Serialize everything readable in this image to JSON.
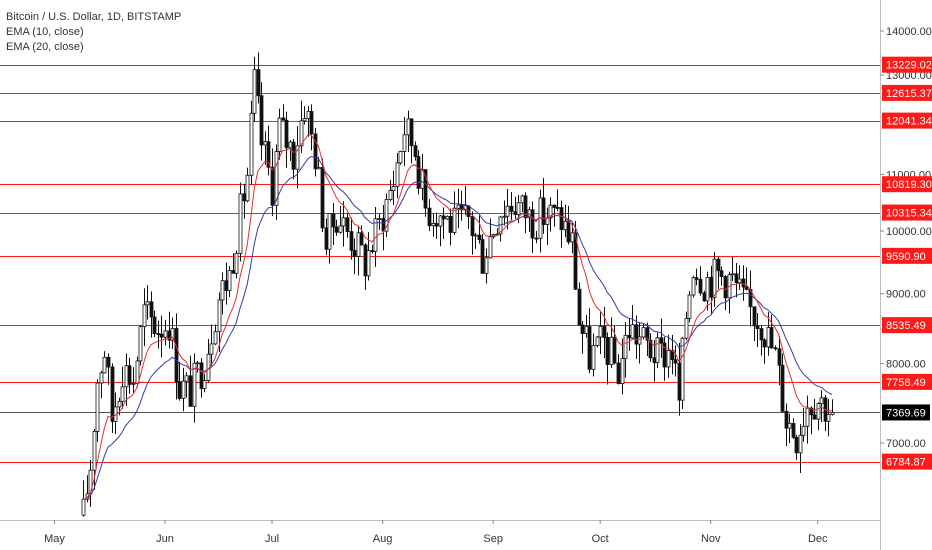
{
  "legend": {
    "title": "Bitcoin / U.S. Dollar, 1D, BITSTAMP",
    "ema10": "EMA (10, close)",
    "ema20": "EMA (20, close)"
  },
  "colors": {
    "up": "#111111",
    "down": "#111111",
    "ema10": "#e03030",
    "ema20": "#3a3aa0",
    "level": "#ff1a1a",
    "current": "#000000",
    "axis": "#333333"
  },
  "chart_data": {
    "type": "candlestick",
    "title": "Bitcoin / U.S. Dollar, 1D, BITSTAMP",
    "y_scale": "log",
    "ylim": [
      6150,
      14700
    ],
    "y_ticks": [
      {
        "value": 14000,
        "label": "14000.00"
      },
      {
        "value": 13000,
        "label": "13000.00"
      },
      {
        "value": 11000,
        "label": "11000.00"
      },
      {
        "value": 10000,
        "label": "10000.00"
      },
      {
        "value": 9000,
        "label": "9000.00"
      },
      {
        "value": 8000,
        "label": "8000.00"
      },
      {
        "value": 7000,
        "label": "7000.00"
      }
    ],
    "x_ticks": [
      {
        "date": "2019-05-01",
        "label": "May"
      },
      {
        "date": "2019-06-01",
        "label": "Jun"
      },
      {
        "date": "2019-07-01",
        "label": "Jul"
      },
      {
        "date": "2019-08-01",
        "label": "Aug"
      },
      {
        "date": "2019-09-01",
        "label": "Sep"
      },
      {
        "date": "2019-10-01",
        "label": "Oct"
      },
      {
        "date": "2019-11-01",
        "label": "Nov"
      },
      {
        "date": "2019-12-01",
        "label": "Dec"
      }
    ],
    "x_start": "2019-05-09",
    "x_end": "2019-12-05",
    "horizontal_levels": [
      {
        "value": 13229.02,
        "label": "13229.02"
      },
      {
        "value": 12615.37,
        "label": "12615.37"
      },
      {
        "value": 12041.34,
        "label": "12041.34"
      },
      {
        "value": 10819.3,
        "label": "10819.30"
      },
      {
        "value": 10315.34,
        "label": "10315.34"
      },
      {
        "value": 9590.9,
        "label": "9590.90"
      },
      {
        "value": 8535.49,
        "label": "8535.49"
      },
      {
        "value": 7758.49,
        "label": "7758.49"
      },
      {
        "value": 6784.87,
        "label": "6784.87"
      }
    ],
    "current_price": {
      "value": 7369.69,
      "label": "7369.69"
    },
    "close_path": [
      [
        "2019-05-09",
        6200
      ],
      [
        "2019-05-11",
        6750
      ],
      [
        "2019-05-13",
        7800
      ],
      [
        "2019-05-15",
        8200
      ],
      [
        "2019-05-17",
        7300
      ],
      [
        "2019-05-20",
        7950
      ],
      [
        "2019-05-23",
        7800
      ],
      [
        "2019-05-26",
        8700
      ],
      [
        "2019-05-30",
        8500
      ],
      [
        "2019-06-02",
        8600
      ],
      [
        "2019-06-05",
        7700
      ],
      [
        "2019-06-08",
        7650
      ],
      [
        "2019-06-12",
        8050
      ],
      [
        "2019-06-16",
        8950
      ],
      [
        "2019-06-19",
        9300
      ],
      [
        "2019-06-22",
        10300
      ],
      [
        "2019-06-24",
        11000
      ],
      [
        "2019-06-26",
        12800
      ],
      [
        "2019-06-28",
        11600
      ],
      [
        "2019-07-01",
        10800
      ],
      [
        "2019-07-03",
        11900
      ],
      [
        "2019-07-07",
        11400
      ],
      [
        "2019-07-10",
        12400
      ],
      [
        "2019-07-13",
        11400
      ],
      [
        "2019-07-16",
        9800
      ],
      [
        "2019-07-19",
        10300
      ],
      [
        "2019-07-23",
        9900
      ],
      [
        "2019-07-27",
        9500
      ],
      [
        "2019-07-31",
        10100
      ],
      [
        "2019-08-04",
        10900
      ],
      [
        "2019-08-07",
        11900
      ],
      [
        "2019-08-10",
        11500
      ],
      [
        "2019-08-13",
        10400
      ],
      [
        "2019-08-17",
        10300
      ],
      [
        "2019-08-21",
        10100
      ],
      [
        "2019-08-25",
        10200
      ],
      [
        "2019-08-29",
        9600
      ],
      [
        "2019-09-03",
        10400
      ],
      [
        "2019-09-07",
        10500
      ],
      [
        "2019-09-12",
        10200
      ],
      [
        "2019-09-16",
        10300
      ],
      [
        "2019-09-20",
        10200
      ],
      [
        "2019-09-23",
        9800
      ],
      [
        "2019-09-25",
        8600
      ],
      [
        "2019-09-28",
        8100
      ],
      [
        "2019-10-02",
        8300
      ],
      [
        "2019-10-06",
        7900
      ],
      [
        "2019-10-09",
        8500
      ],
      [
        "2019-10-13",
        8300
      ],
      [
        "2019-10-17",
        8100
      ],
      [
        "2019-10-21",
        8200
      ],
      [
        "2019-10-23",
        7500
      ],
      [
        "2019-10-25",
        8700
      ],
      [
        "2019-10-27",
        9500
      ],
      [
        "2019-10-30",
        9200
      ],
      [
        "2019-11-03",
        9300
      ],
      [
        "2019-11-07",
        9200
      ],
      [
        "2019-11-11",
        8800
      ],
      [
        "2019-11-15",
        8600
      ],
      [
        "2019-11-19",
        8100
      ],
      [
        "2019-11-22",
        7300
      ],
      [
        "2019-11-25",
        7100
      ],
      [
        "2019-11-28",
        7500
      ],
      [
        "2019-12-01",
        7550
      ],
      [
        "2019-12-05",
        7370
      ]
    ]
  }
}
